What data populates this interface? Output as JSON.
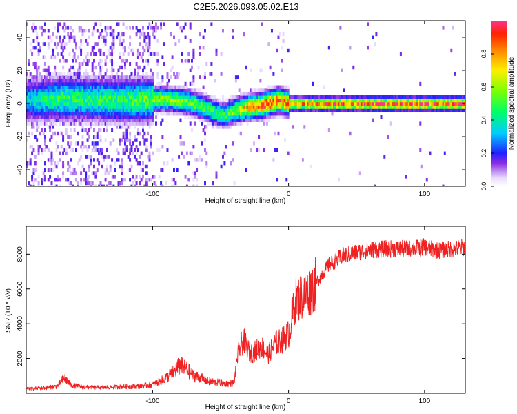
{
  "title": "C2E5.2026.093.05.02.E13",
  "colors": {
    "snr_line": "#ee2222",
    "axis": "#000000",
    "background": "#ffffff"
  },
  "chart_data": [
    {
      "type": "heatmap",
      "name": "spectrogram",
      "xlabel": "Height of straight line (km)",
      "ylabel": "Frequency (Hz)",
      "xlim": [
        -193,
        130
      ],
      "ylim": [
        -50,
        50
      ],
      "xticks": [
        -100,
        0,
        100
      ],
      "xtick_labels": [
        "-100",
        "0",
        "100"
      ],
      "yticks": [
        -40,
        -20,
        0,
        20,
        40
      ],
      "ytick_labels": [
        "-40",
        "-20",
        "0",
        "20",
        "40"
      ],
      "colorbar": {
        "label": "Normalized spectral amplitude",
        "range": [
          0,
          1
        ],
        "ticks": [
          0.0,
          0.2,
          0.4,
          0.6,
          0.8
        ],
        "tick_labels": [
          "0.0",
          "0.2",
          "0.4",
          "0.6",
          "0.8"
        ]
      },
      "ridge": {
        "description": "frequency centre of the dominant signal vs height",
        "x": [
          -190,
          -170,
          -150,
          -130,
          -110,
          -95,
          -80,
          -70,
          -60,
          -52,
          -47,
          -40,
          -30,
          -20,
          -12,
          -8,
          -4,
          0,
          20,
          60,
          100,
          130
        ],
        "freq": [
          2,
          3,
          3,
          2,
          2,
          3,
          2,
          0,
          -3,
          -6,
          -7,
          -4,
          -2,
          -1,
          1,
          2,
          1,
          0,
          0,
          0,
          0,
          0
        ],
        "amplitude": [
          0.35,
          0.45,
          0.45,
          0.45,
          0.5,
          0.55,
          0.55,
          0.55,
          0.5,
          0.45,
          0.45,
          0.6,
          0.75,
          0.9,
          0.9,
          0.9,
          0.85,
          0.8,
          0.85,
          0.9,
          0.92,
          0.95
        ]
      }
    },
    {
      "type": "line",
      "name": "snr",
      "xlabel": "Height of straight line (km)",
      "ylabel": "SNR (10 * v/v)",
      "xlim": [
        -193,
        130
      ],
      "ylim": [
        0,
        9600
      ],
      "xticks": [
        -100,
        0,
        100
      ],
      "xtick_labels": [
        "-100",
        "0",
        "100"
      ],
      "yticks": [
        2000,
        4000,
        6000,
        8000
      ],
      "ytick_labels": [
        "2000",
        "4000",
        "6000",
        "8000"
      ],
      "x": [
        -193,
        -180,
        -170,
        -165,
        -160,
        -150,
        -140,
        -130,
        -120,
        -110,
        -100,
        -95,
        -90,
        -85,
        -80,
        -75,
        -70,
        -65,
        -60,
        -55,
        -50,
        -45,
        -40,
        -38,
        -35,
        -32,
        -30,
        -27,
        -25,
        -20,
        -15,
        -10,
        -5,
        -2,
        0,
        5,
        10,
        15,
        20,
        25,
        30,
        40,
        50,
        60,
        70,
        80,
        90,
        100,
        110,
        120,
        130
      ],
      "y": [
        250,
        300,
        400,
        900,
        450,
        350,
        330,
        350,
        380,
        400,
        500,
        650,
        900,
        1200,
        1600,
        1400,
        1000,
        900,
        700,
        650,
        600,
        550,
        600,
        2000,
        2800,
        3000,
        2500,
        2300,
        2400,
        2700,
        2200,
        2900,
        3000,
        3300,
        3400,
        5300,
        5600,
        5800,
        6300,
        6900,
        7400,
        7900,
        8100,
        8250,
        8300,
        8300,
        8300,
        8400,
        8200,
        8300,
        8400
      ]
    }
  ]
}
